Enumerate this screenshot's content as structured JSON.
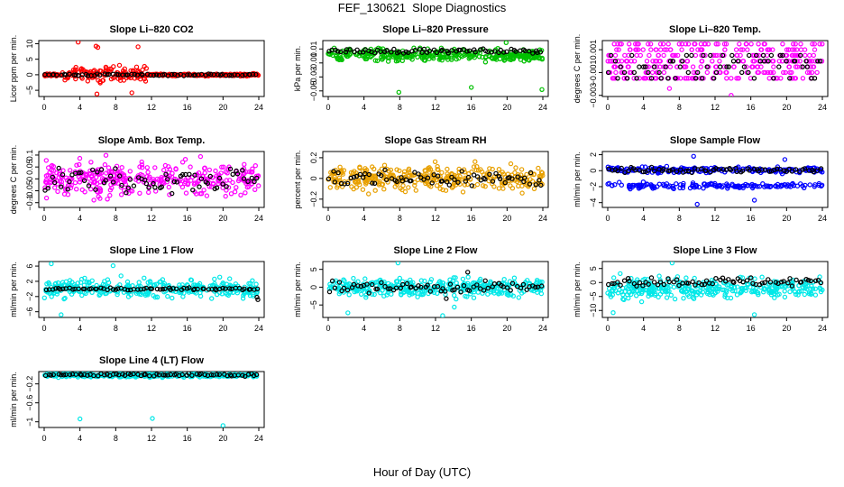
{
  "title": "FEF_130621  Slope Diagnostics",
  "xlabel": "Hour of Day (UTC)",
  "chart_data": [
    {
      "type": "scatter",
      "title": "Slope Li–820 CO2",
      "ylabel": "Licor ppm per min.",
      "xticks": [
        "0",
        "4",
        "8",
        "12",
        "16",
        "20",
        "24"
      ],
      "xlim": [
        0,
        24
      ],
      "yticks": [
        -5,
        0,
        5,
        10
      ],
      "ylim": [
        -7,
        11
      ],
      "series": [
        {
          "color": "#ff0000",
          "center": 0,
          "spread": 2.2,
          "active": [
            2,
            11.5
          ],
          "outliers": [
            [
              3.8,
              10.5
            ],
            [
              5.8,
              9.2
            ],
            [
              6.0,
              8.8
            ],
            [
              10.5,
              9.0
            ],
            [
              5.9,
              -6.2
            ],
            [
              9.8,
              -5.8
            ]
          ]
        },
        {
          "color": "#000000",
          "center": 0,
          "spread": 0.3
        }
      ]
    },
    {
      "type": "scatter",
      "title": "Slope Li–820 Pressure",
      "ylabel": "kPa per min.",
      "xticks": [
        "0",
        "4",
        "8",
        "12",
        "16",
        "20",
        "24"
      ],
      "xlim": [
        0,
        24
      ],
      "yticks": [
        -0.05,
        -0.03,
        -0.01,
        0.01
      ],
      "ylim": [
        -0.058,
        0.022
      ],
      "series": [
        {
          "color": "#00c000",
          "center": 0.001,
          "spread": 0.008,
          "outliers": [
            [
              7.9,
              -0.052
            ],
            [
              16.0,
              -0.045
            ],
            [
              23.9,
              -0.048
            ],
            [
              19.9,
              0.019
            ]
          ]
        },
        {
          "color": "#000000",
          "center": 0.007,
          "spread": 0.003
        }
      ]
    },
    {
      "type": "scatter",
      "title": "Slope Li–820 Temp.",
      "ylabel": "degrees C per min.",
      "xticks": [
        "0",
        "4",
        "8",
        "12",
        "16",
        "20",
        "24"
      ],
      "xlim": [
        0,
        24
      ],
      "yticks": [
        -0.003,
        -0.001,
        0.001
      ],
      "ylim": [
        -0.0031,
        0.0018
      ],
      "series": [
        {
          "color": "#ff00ff",
          "center": 0,
          "spread": 0.0012,
          "levels": [
            -0.0015,
            -0.001,
            -0.0005,
            0,
            0.0005,
            0.001,
            0.0015
          ],
          "outliers": [
            [
              6.9,
              -0.0024
            ],
            [
              13.8,
              -0.003
            ]
          ]
        },
        {
          "color": "#000000",
          "center": 0,
          "spread": 0.0006,
          "levels": [
            -0.0015,
            -0.001,
            -0.0005,
            0,
            0.0005
          ]
        }
      ]
    },
    {
      "type": "scatter",
      "title": "Slope Amb. Box Temp.",
      "ylabel": "degrees C per min.",
      "xticks": [
        "0",
        "4",
        "8",
        "12",
        "16",
        "20",
        "24"
      ],
      "xlim": [
        0,
        24
      ],
      "yticks": [
        -0.1,
        -0.05,
        0.0,
        0.05,
        0.1
      ],
      "ylim": [
        -0.12,
        0.115
      ],
      "series": [
        {
          "color": "#ff00ff",
          "center": 0,
          "spread": 0.065
        },
        {
          "color": "#000000",
          "center": 0,
          "spread": 0.05
        }
      ]
    },
    {
      "type": "scatter",
      "title": "Slope Gas Stream RH",
      "ylabel": "percent per min.",
      "xticks": [
        "0",
        "4",
        "8",
        "12",
        "16",
        "20",
        "24"
      ],
      "xlim": [
        0,
        24
      ],
      "yticks": [
        -0.2,
        0.0,
        0.2
      ],
      "ylim": [
        -0.28,
        0.26
      ],
      "series": [
        {
          "color": "#e8a000",
          "center": 0,
          "spread": 0.11
        },
        {
          "color": "#000000",
          "center": 0,
          "spread": 0.08
        }
      ]
    },
    {
      "type": "scatter",
      "title": "Slope Sample Flow",
      "ylabel": "ml/min per min.",
      "xticks": [
        "0",
        "4",
        "8",
        "12",
        "16",
        "20",
        "24"
      ],
      "xlim": [
        0,
        24
      ],
      "yticks": [
        -4,
        -2,
        0,
        2
      ],
      "ylim": [
        -4.6,
        2.4
      ],
      "series": [
        {
          "color": "#0000ff",
          "center": 0,
          "spread": 0.35,
          "bands": [
            0.1,
            -1.9
          ],
          "outliers": [
            [
              10.0,
              -4.2
            ],
            [
              9.6,
              1.8
            ],
            [
              19.8,
              1.4
            ],
            [
              16.4,
              -3.7
            ]
          ]
        },
        {
          "color": "#000000",
          "center": 0.1,
          "spread": 0.3
        }
      ]
    },
    {
      "type": "scatter",
      "title": "Slope Line 1 Flow",
      "ylabel": "ml/min per min.",
      "xticks": [
        "0",
        "4",
        "8",
        "12",
        "16",
        "20",
        "24"
      ],
      "xlim": [
        0,
        24
      ],
      "yticks": [
        -6,
        -2,
        2,
        6
      ],
      "ylim": [
        -7.5,
        7.2
      ],
      "series": [
        {
          "color": "#00e8e8",
          "center": 0,
          "spread": 2.2,
          "outliers": [
            [
              0.8,
              6.6
            ],
            [
              1.9,
              -6.8
            ],
            [
              7.7,
              6.1
            ]
          ]
        },
        {
          "color": "#000000",
          "center": 0,
          "spread": 0.3,
          "outliers": [
            [
              23.8,
              -2.2
            ],
            [
              23.9,
              -2.8
            ]
          ]
        }
      ]
    },
    {
      "type": "scatter",
      "title": "Slope Line 2 Flow",
      "ylabel": "ml/min per min.",
      "xticks": [
        "0",
        "4",
        "8",
        "12",
        "16",
        "20",
        "24"
      ],
      "xlim": [
        0,
        24
      ],
      "yticks": [
        -5,
        0,
        5
      ],
      "ylim": [
        -8.5,
        7.2
      ],
      "series": [
        {
          "color": "#00e8e8",
          "center": 0,
          "spread": 2.4,
          "outliers": [
            [
              2.2,
              -7.2
            ],
            [
              7.8,
              6.8
            ],
            [
              12.8,
              -8.0
            ],
            [
              14.1,
              -5.6
            ]
          ]
        },
        {
          "color": "#000000",
          "center": 0,
          "spread": 1.4,
          "outliers": [
            [
              15.6,
              4.2
            ],
            [
              13.2,
              -3.2
            ]
          ]
        }
      ]
    },
    {
      "type": "scatter",
      "title": "Slope Line 3 Flow",
      "ylabel": "ml/min per min.",
      "xticks": [
        "0",
        "4",
        "8",
        "12",
        "16",
        "20",
        "24"
      ],
      "xlim": [
        0,
        24
      ],
      "yticks": [
        -10,
        -5,
        0,
        5
      ],
      "ylim": [
        -12.5,
        7.5
      ],
      "series": [
        {
          "color": "#00e8e8",
          "center": -2,
          "spread": 3.4,
          "outliers": [
            [
              7.2,
              7.0
            ],
            [
              16.4,
              -11.5
            ],
            [
              0.6,
              -10.8
            ]
          ]
        },
        {
          "color": "#000000",
          "center": 0.3,
          "spread": 1.5
        }
      ]
    },
    {
      "type": "scatter",
      "title": "Slope Line 4 (LT) Flow",
      "ylabel": "ml/min per min.",
      "xticks": [
        "0",
        "4",
        "8",
        "12",
        "16",
        "20",
        "24"
      ],
      "xlim": [
        0,
        24
      ],
      "yticks": [
        -1.0,
        -0.6,
        -0.2
      ],
      "ylim": [
        -1.12,
        0.06
      ],
      "series": [
        {
          "color": "#00e8e8",
          "center": -0.02,
          "spread": 0.035,
          "outliers": [
            [
              4.0,
              -0.94
            ],
            [
              12.1,
              -0.93
            ],
            [
              20.0,
              -1.08
            ]
          ]
        },
        {
          "color": "#000000",
          "center": -0.01,
          "spread": 0.03
        }
      ]
    }
  ]
}
